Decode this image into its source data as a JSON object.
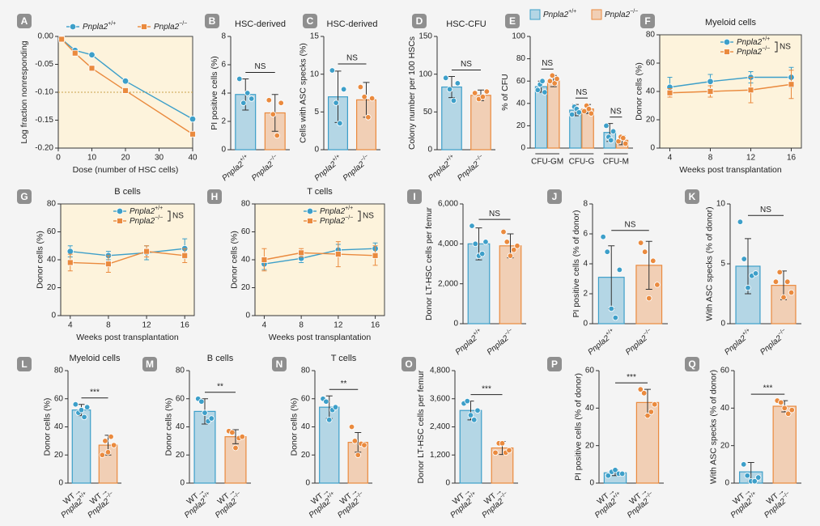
{
  "chart_data": [
    {
      "type": "line",
      "panel": "A",
      "xlabel": "Dose (number of HSC cells)",
      "ylabel": "Log fraction nonresponding",
      "legend": "top",
      "x": [
        1,
        5,
        10,
        20,
        40
      ],
      "xlim": [
        0,
        40
      ],
      "xticks": [
        0,
        10,
        20,
        30,
        40
      ],
      "ylim": [
        -0.2,
        0
      ],
      "yticks": [
        {
          "value": 0,
          "label": "0.00"
        },
        {
          "value": -0.05,
          "label": "-0.05"
        },
        {
          "value": -0.1,
          "label": "-0.10"
        },
        {
          "value": -0.15,
          "label": "-0.15"
        },
        {
          "value": -0.2,
          "label": "-0.20"
        }
      ],
      "reference_line": -0.1,
      "series": [
        {
          "name": "Pnpla2+/+",
          "color": "#3d9fc9",
          "marker": "circle",
          "values": [
            -0.005,
            -0.025,
            -0.033,
            -0.08,
            -0.148
          ]
        },
        {
          "name": "Pnpla2−/−",
          "color": "#ea8a3e",
          "marker": "square",
          "values": [
            -0.005,
            -0.03,
            -0.057,
            -0.097,
            -0.175
          ]
        }
      ]
    },
    {
      "type": "bar",
      "panel": "B",
      "title": "HSC-derived",
      "ylabel": "PI positive cells (%)",
      "annotation": "NS",
      "categories": [
        "Pnpla2+/+",
        "Pnpla2−/−"
      ],
      "colors": [
        "#3d9fc9",
        "#ea8a3e"
      ],
      "ylim": [
        0,
        8
      ],
      "yticks": [
        0,
        2,
        4,
        6,
        8
      ],
      "values": [
        3.9,
        2.6
      ],
      "errors": [
        1.1,
        1.3
      ],
      "points": [
        [
          5.0,
          3.3,
          4.0,
          3.6
        ],
        [
          3.5,
          2.5,
          1.0,
          3.3
        ]
      ]
    },
    {
      "type": "bar",
      "panel": "C",
      "title": "HSC-derived",
      "ylabel": "Cells with ASC specks (%)",
      "annotation": "NS",
      "categories": [
        "Pnpla2+/+",
        "Pnpla2−/−"
      ],
      "colors": [
        "#3d9fc9",
        "#ea8a3e"
      ],
      "ylim": [
        0,
        15
      ],
      "yticks": [
        0,
        5,
        10,
        15
      ],
      "values": [
        7.0,
        6.6
      ],
      "errors": [
        3.4,
        2.3
      ],
      "points": [
        [
          10.5,
          6.2,
          3.5,
          8.0
        ],
        [
          8.3,
          7.0,
          4.3,
          6.8
        ]
      ]
    },
    {
      "type": "bar",
      "panel": "D",
      "title": "HSC-CFU",
      "ylabel": "Colony number per 100 HSCs",
      "annotation": "NS",
      "categories": [
        "Pnpla2+/+",
        "Pnpla2−/−"
      ],
      "colors": [
        "#3d9fc9",
        "#ea8a3e"
      ],
      "ylim": [
        0,
        150
      ],
      "yticks": [
        0,
        50,
        100,
        150
      ],
      "values": [
        83,
        72
      ],
      "errors": [
        14,
        7
      ],
      "points": [
        [
          95,
          80,
          65,
          88
        ],
        [
          75,
          67,
          70,
          77
        ]
      ]
    },
    {
      "type": "grouped_bar",
      "panel": "E",
      "ylabel": "% of CFU",
      "legend": "top",
      "annotations": [
        "NS",
        "NS",
        "NS"
      ],
      "categories": [
        "CFU-GM",
        "CFU-G",
        "CFU-M"
      ],
      "ylim": [
        0,
        100
      ],
      "yticks": [
        0,
        20,
        40,
        60,
        80,
        100
      ],
      "series": [
        {
          "name": "Pnpla2+/+",
          "color": "#3d9fc9",
          "values": [
            55,
            34,
            14
          ],
          "errors": [
            5,
            5,
            8
          ],
          "points": [
            [
              52,
              57,
              60,
              50
            ],
            [
              30,
              37,
              35,
              32
            ],
            [
              20,
              10,
              7,
              15
            ]
          ]
        },
        {
          "name": "Pnpla2−/−",
          "color": "#ea8a3e",
          "values": [
            60,
            35,
            7
          ],
          "errors": [
            5,
            4,
            4
          ],
          "points": [
            [
              60,
              65,
              58,
              62
            ],
            [
              33,
              38,
              35,
              31
            ],
            [
              6,
              10,
              9,
              4
            ]
          ]
        }
      ]
    },
    {
      "type": "line",
      "panel": "F",
      "title": "Myeloid cells",
      "xlabel": "Weeks post transplantation",
      "ylabel": "Donor cells (%)",
      "legend": "top right",
      "annotation": "NS",
      "x": [
        4,
        8,
        12,
        16
      ],
      "xlim": [
        3,
        17
      ],
      "xticks": [
        4,
        8,
        12,
        16
      ],
      "ylim": [
        0,
        80
      ],
      "yticks": [
        0,
        20,
        40,
        60,
        80
      ],
      "series": [
        {
          "name": "Pnpla2+/+",
          "color": "#3d9fc9",
          "marker": "circle",
          "values": [
            43,
            47,
            50,
            50
          ],
          "errors": [
            7,
            5,
            4,
            7
          ]
        },
        {
          "name": "Pnpla2−/−",
          "color": "#ea8a3e",
          "marker": "square",
          "values": [
            39,
            40,
            41,
            45
          ],
          "errors": [
            3,
            4,
            9,
            10
          ]
        }
      ]
    },
    {
      "type": "line",
      "panel": "G",
      "title": "B cells",
      "xlabel": "Weeks post transplantation",
      "ylabel": "Donor cells (%)",
      "legend": "top right",
      "annotation": "NS",
      "x": [
        4,
        8,
        12,
        16
      ],
      "xlim": [
        3,
        17
      ],
      "xticks": [
        4,
        8,
        12,
        16
      ],
      "ylim": [
        0,
        80
      ],
      "yticks": [
        0,
        20,
        40,
        60,
        80
      ],
      "series": [
        {
          "name": "Pnpla2+/+",
          "color": "#3d9fc9",
          "marker": "circle",
          "values": [
            46,
            43,
            45,
            48
          ],
          "errors": [
            4,
            3,
            5,
            7
          ]
        },
        {
          "name": "Pnpla2−/−",
          "color": "#ea8a3e",
          "marker": "square",
          "values": [
            38,
            37,
            46,
            43
          ],
          "errors": [
            6,
            6,
            4,
            5
          ]
        }
      ]
    },
    {
      "type": "line",
      "panel": "H",
      "title": "T cells",
      "xlabel": "Weeks post transplantation",
      "ylabel": "Donor cells (%)",
      "legend": "top right",
      "annotation": "NS",
      "x": [
        4,
        8,
        12,
        16
      ],
      "xlim": [
        3,
        17
      ],
      "xticks": [
        4,
        8,
        12,
        16
      ],
      "ylim": [
        0,
        80
      ],
      "yticks": [
        0,
        20,
        40,
        60,
        80
      ],
      "series": [
        {
          "name": "Pnpla2+/+",
          "color": "#3d9fc9",
          "marker": "circle",
          "values": [
            37,
            41,
            47,
            48
          ],
          "errors": [
            4,
            3,
            4,
            4
          ]
        },
        {
          "name": "Pnpla2−/−",
          "color": "#ea8a3e",
          "marker": "square",
          "values": [
            40,
            45,
            44,
            43
          ],
          "errors": [
            8,
            3,
            9,
            7
          ]
        }
      ]
    },
    {
      "type": "bar",
      "panel": "I",
      "ylabel": "Donor LT-HSC cells per femur",
      "annotation": "NS",
      "categories": [
        "Pnpla2+/+",
        "Pnpla2−/−"
      ],
      "colors": [
        "#3d9fc9",
        "#ea8a3e"
      ],
      "ylim": [
        0,
        6000
      ],
      "yticks": [
        0,
        {
          "value": 2000,
          "label": "2,000"
        },
        {
          "value": 4000,
          "label": "4,000"
        },
        {
          "value": 6000,
          "label": "6,000"
        }
      ],
      "values": [
        4000,
        3900
      ],
      "errors": [
        800,
        600
      ],
      "points": [
        [
          4900,
          4000,
          3400,
          3500,
          4100
        ],
        [
          4600,
          4100,
          3400,
          3700,
          3900
        ]
      ]
    },
    {
      "type": "bar",
      "panel": "J",
      "ylabel": "PI positive cells (% of donor)",
      "annotation": "NS",
      "categories": [
        "Pnpla2+/+",
        "Pnpla2−/−"
      ],
      "colors": [
        "#3d9fc9",
        "#ea8a3e"
      ],
      "ylim": [
        0,
        8
      ],
      "yticks": [
        0,
        2,
        4,
        6,
        8
      ],
      "values": [
        3.1,
        3.9
      ],
      "errors": [
        2.1,
        1.6
      ],
      "points": [
        [
          5.8,
          4.8,
          1.0,
          0.4,
          3.6
        ],
        [
          5.4,
          4.8,
          1.7,
          4.2,
          2.6
        ]
      ]
    },
    {
      "type": "bar",
      "panel": "K",
      "ylabel": "With ASC specks (% of donor)",
      "annotation": "NS",
      "categories": [
        "Pnpla2+/+",
        "Pnpla2−/−"
      ],
      "colors": [
        "#3d9fc9",
        "#ea8a3e"
      ],
      "ylim": [
        0,
        10
      ],
      "yticks": [
        0,
        5,
        10
      ],
      "values": [
        4.8,
        3.2
      ],
      "errors": [
        2.3,
        1.2
      ],
      "points": [
        [
          8.5,
          5.4,
          3.0,
          4.0,
          4.2
        ],
        [
          3.5,
          4.3,
          2.2,
          3.5,
          2.6
        ]
      ]
    },
    {
      "type": "bar",
      "panel": "L",
      "title": "Myeloid cells",
      "ylabel": "Donor cells (%)",
      "annotation": "***",
      "categories": [
        "WT→ Pnpla2+/+",
        "WT→ Pnpla2−/−"
      ],
      "colors": [
        "#3d9fc9",
        "#ea8a3e"
      ],
      "ylim": [
        0,
        80
      ],
      "yticks": [
        0,
        20,
        40,
        60,
        80
      ],
      "values": [
        52,
        27
      ],
      "errors": [
        4,
        7
      ],
      "points": [
        [
          56,
          50,
          52,
          47,
          54
        ],
        [
          20,
          30,
          22,
          33,
          27
        ]
      ]
    },
    {
      "type": "bar",
      "panel": "M",
      "title": "B cells",
      "ylabel": "Donor cells (%)",
      "annotation": "**",
      "categories": [
        "WT→ Pnpla2+/+",
        "WT→ Pnpla2−/−"
      ],
      "colors": [
        "#3d9fc9",
        "#ea8a3e"
      ],
      "ylim": [
        0,
        80
      ],
      "yticks": [
        0,
        20,
        40,
        60,
        80
      ],
      "values": [
        51,
        33
      ],
      "errors": [
        9,
        5
      ],
      "points": [
        [
          60,
          58,
          50,
          44,
          46
        ],
        [
          37,
          36,
          25,
          32,
          33
        ]
      ]
    },
    {
      "type": "bar",
      "panel": "N",
      "title": "T cells",
      "ylabel": "Donor cells (%)",
      "annotation": "**",
      "categories": [
        "WT→ Pnpla2+/+",
        "WT→ Pnpla2−/−"
      ],
      "colors": [
        "#3d9fc9",
        "#ea8a3e"
      ],
      "ylim": [
        0,
        80
      ],
      "yticks": [
        0,
        20,
        40,
        60,
        80
      ],
      "values": [
        54,
        29
      ],
      "errors": [
        8,
        7
      ],
      "points": [
        [
          60,
          58,
          45,
          52,
          54
        ],
        [
          40,
          30,
          20,
          28,
          27
        ]
      ]
    },
    {
      "type": "bar",
      "panel": "O",
      "ylabel": "Donor LT-HSC cells per femur",
      "annotation": "***",
      "categories": [
        "WT→ Pnpla2+/+",
        "WT→ Pnpla2−/−"
      ],
      "colors": [
        "#3d9fc9",
        "#ea8a3e"
      ],
      "ylim": [
        0,
        4800
      ],
      "yticks": [
        0,
        {
          "value": 1200,
          "label": "1,200"
        },
        {
          "value": 2400,
          "label": "2,400"
        },
        {
          "value": 3600,
          "label": "3,600"
        },
        {
          "value": 4800,
          "label": "4,800"
        }
      ],
      "values": [
        3100,
        1500
      ],
      "errors": [
        400,
        280
      ],
      "points": [
        [
          3400,
          3500,
          2900,
          2700,
          3100
        ],
        [
          1300,
          1700,
          1700,
          1300,
          1400
        ]
      ]
    },
    {
      "type": "bar",
      "panel": "P",
      "ylabel": "PI positive cells (% of donor)",
      "annotation": "***",
      "categories": [
        "WT→ Pnpla2+/+",
        "WT→ Pnpla2−/−"
      ],
      "colors": [
        "#3d9fc9",
        "#ea8a3e"
      ],
      "ylim": [
        0,
        60
      ],
      "yticks": [
        0,
        20,
        40,
        60
      ],
      "values": [
        5.5,
        43
      ],
      "errors": [
        1.5,
        7
      ],
      "points": [
        [
          4,
          6,
          7,
          5,
          5
        ],
        [
          50,
          48,
          36,
          38,
          42
        ]
      ]
    },
    {
      "type": "bar",
      "panel": "Q",
      "ylabel": "With ASC specks (% of donor)",
      "annotation": "***",
      "categories": [
        "WT→ Pnpla2+/+",
        "WT→ Pnpla2−/−"
      ],
      "colors": [
        "#3d9fc9",
        "#ea8a3e"
      ],
      "ylim": [
        0,
        60
      ],
      "yticks": [
        0,
        20,
        40,
        60
      ],
      "values": [
        6,
        41
      ],
      "errors": [
        5,
        3
      ],
      "points": [
        [
          10,
          4,
          1,
          1,
          3
        ],
        [
          44,
          43,
          40,
          37,
          39
        ]
      ]
    }
  ]
}
